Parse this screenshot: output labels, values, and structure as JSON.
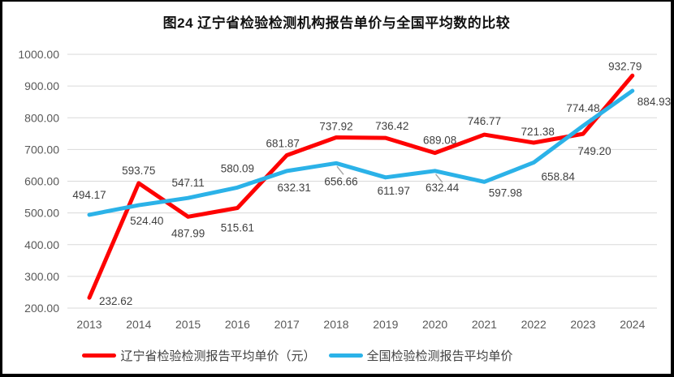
{
  "chart_data": {
    "type": "line",
    "title": "图24 辽宁省检验检测机构报告单价与全国平均数的比较",
    "categories": [
      "2013",
      "2014",
      "2015",
      "2016",
      "2017",
      "2018",
      "2019",
      "2020",
      "2021",
      "2022",
      "2023",
      "2024"
    ],
    "series": [
      {
        "name": "辽宁省检验检测报告平均单价（元）",
        "color": "#FE0202",
        "values": [
          232.62,
          593.75,
          487.99,
          515.61,
          681.87,
          737.92,
          736.42,
          689.08,
          746.77,
          721.38,
          749.2,
          932.79
        ]
      },
      {
        "name": "全国检验检测报告平均单价",
        "color": "#2BB2E8",
        "values": [
          494.17,
          524.4,
          547.11,
          580.09,
          632.31,
          656.66,
          611.97,
          632.44,
          597.98,
          658.84,
          774.48,
          884.93
        ]
      }
    ],
    "ylim": [
      200,
      1000
    ],
    "ytick_step": 100,
    "ytick_format": "0.00",
    "grid": true,
    "legend_position": "bottom",
    "colors": {
      "gridline": "#D9D9D9",
      "axis_label": "#595959",
      "data_label": "#404040",
      "leader_line": "#A6A6A6"
    },
    "label_offsets": [
      [
        [
          12,
          9,
          "start"
        ],
        [
          0,
          -11,
          "middle"
        ],
        [
          0,
          25,
          "middle"
        ],
        [
          0,
          29,
          "middle"
        ],
        [
          -5,
          -10,
          "middle"
        ],
        [
          0,
          -9,
          "middle"
        ],
        [
          8,
          -10,
          "middle"
        ],
        [
          6,
          -11,
          "middle"
        ],
        [
          0,
          -12,
          "middle"
        ],
        [
          5,
          -9,
          "middle"
        ],
        [
          14,
          26,
          "middle"
        ],
        [
          -9,
          -7,
          "middle"
        ]
      ],
      [
        [
          0,
          -20,
          "middle"
        ],
        [
          10,
          24,
          "middle"
        ],
        [
          0,
          -14,
          "middle"
        ],
        [
          0,
          -19,
          "middle"
        ],
        [
          9,
          25,
          "middle"
        ],
        [
          6,
          27,
          "middle"
        ],
        [
          10,
          21,
          "middle"
        ],
        [
          9,
          25,
          "middle"
        ],
        [
          26,
          18,
          "middle"
        ],
        [
          30,
          22,
          "middle"
        ],
        [
          0,
          -17,
          "middle"
        ],
        [
          6,
          18,
          "start"
        ]
      ]
    ],
    "leader_points": [
      [
        1,
        5
      ],
      [
        1,
        7
      ]
    ]
  }
}
